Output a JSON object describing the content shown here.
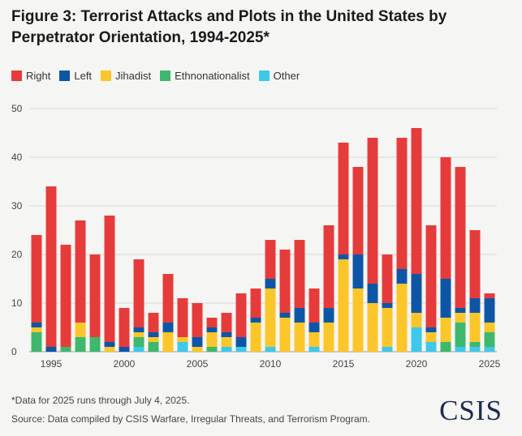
{
  "title": "Figure 3: Terrorist Attacks and Plots in the United States by Perpetrator Orientation, 1994-2025*",
  "legend": [
    {
      "label": "Right",
      "color": "#e63b3b"
    },
    {
      "label": "Left",
      "color": "#0d56a6"
    },
    {
      "label": "Jihadist",
      "color": "#fcc62a"
    },
    {
      "label": "Ethnonationalist",
      "color": "#3db86c"
    },
    {
      "label": "Other",
      "color": "#3ec8ea"
    }
  ],
  "footnote": "*Data for 2025 runs through July 4, 2025.",
  "source": "Source: Data compiled by CSIS Warfare, Irregular Threats, and Terrorism Program.",
  "logo_text": "CSIS",
  "chart_data": {
    "type": "bar",
    "stacked": true,
    "categories": [
      1994,
      1995,
      1996,
      1997,
      1998,
      1999,
      2000,
      2001,
      2002,
      2003,
      2004,
      2005,
      2006,
      2007,
      2008,
      2009,
      2010,
      2011,
      2012,
      2013,
      2014,
      2015,
      2016,
      2017,
      2018,
      2019,
      2020,
      2021,
      2022,
      2023,
      2024,
      2025
    ],
    "xticks": [
      "1995",
      "2000",
      "2005",
      "2010",
      "2015",
      "2020",
      "2025"
    ],
    "yticks": [
      0,
      10,
      20,
      30,
      40,
      50
    ],
    "ylim": [
      0,
      50
    ],
    "grid": true,
    "series": [
      {
        "name": "Other",
        "color": "#3ec8ea",
        "values": [
          0,
          0,
          0,
          0,
          0,
          0,
          0,
          1,
          0,
          0,
          2,
          0,
          0,
          1,
          1,
          0,
          1,
          0,
          0,
          1,
          0,
          0,
          0,
          0,
          1,
          0,
          5,
          2,
          0,
          1,
          1,
          1
        ]
      },
      {
        "name": "Ethnonationalist",
        "color": "#3db86c",
        "values": [
          4,
          0,
          1,
          3,
          3,
          0,
          0,
          2,
          2,
          0,
          0,
          0,
          1,
          0,
          0,
          0,
          0,
          0,
          0,
          0,
          0,
          0,
          0,
          0,
          0,
          0,
          0,
          0,
          2,
          5,
          1,
          3
        ]
      },
      {
        "name": "Jihadist",
        "color": "#fcc62a",
        "values": [
          1,
          0,
          0,
          3,
          0,
          1,
          0,
          1,
          1,
          4,
          1,
          1,
          3,
          2,
          0,
          6,
          12,
          7,
          6,
          3,
          6,
          19,
          13,
          10,
          8,
          14,
          3,
          2,
          5,
          2,
          6,
          2
        ]
      },
      {
        "name": "Left",
        "color": "#0d56a6",
        "values": [
          1,
          1,
          0,
          0,
          0,
          1,
          1,
          1,
          1,
          2,
          0,
          2,
          1,
          1,
          2,
          1,
          2,
          1,
          3,
          2,
          3,
          1,
          7,
          4,
          1,
          3,
          8,
          1,
          8,
          1,
          3,
          5
        ]
      },
      {
        "name": "Right",
        "color": "#e63b3b",
        "values": [
          18,
          33,
          21,
          21,
          17,
          26,
          8,
          14,
          4,
          10,
          8,
          7,
          2,
          4,
          9,
          6,
          8,
          13,
          14,
          7,
          17,
          23,
          18,
          30,
          10,
          27,
          30,
          21,
          25,
          29,
          14,
          1
        ]
      }
    ]
  }
}
